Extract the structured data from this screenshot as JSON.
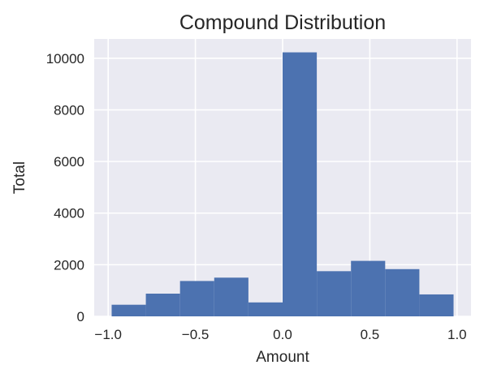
{
  "chart_data": {
    "type": "bar",
    "title": "Compound Distribution",
    "xlabel": "Amount",
    "ylabel": "Total",
    "bin_edges": [
      -0.98,
      -0.784,
      -0.588,
      -0.392,
      -0.196,
      0.0,
      0.196,
      0.392,
      0.588,
      0.784,
      0.98
    ],
    "values": [
      450,
      880,
      1370,
      1500,
      540,
      10230,
      1750,
      2150,
      1830,
      850
    ],
    "xlim": [
      -1.08,
      1.08
    ],
    "ylim": [
      0,
      10750
    ],
    "xticks": [
      -1.0,
      -0.5,
      0.0,
      0.5,
      1.0
    ],
    "xtick_labels": [
      "−1.0",
      "−0.5",
      "0.0",
      "0.5",
      "1.0"
    ],
    "yticks": [
      0,
      2000,
      4000,
      6000,
      8000,
      10000
    ],
    "ytick_labels": [
      "0",
      "2000",
      "4000",
      "6000",
      "8000",
      "10000"
    ],
    "grid": true,
    "bar_color": "#4c72b0",
    "background_color": "#eaeaf2",
    "grid_color": "#ffffff"
  }
}
